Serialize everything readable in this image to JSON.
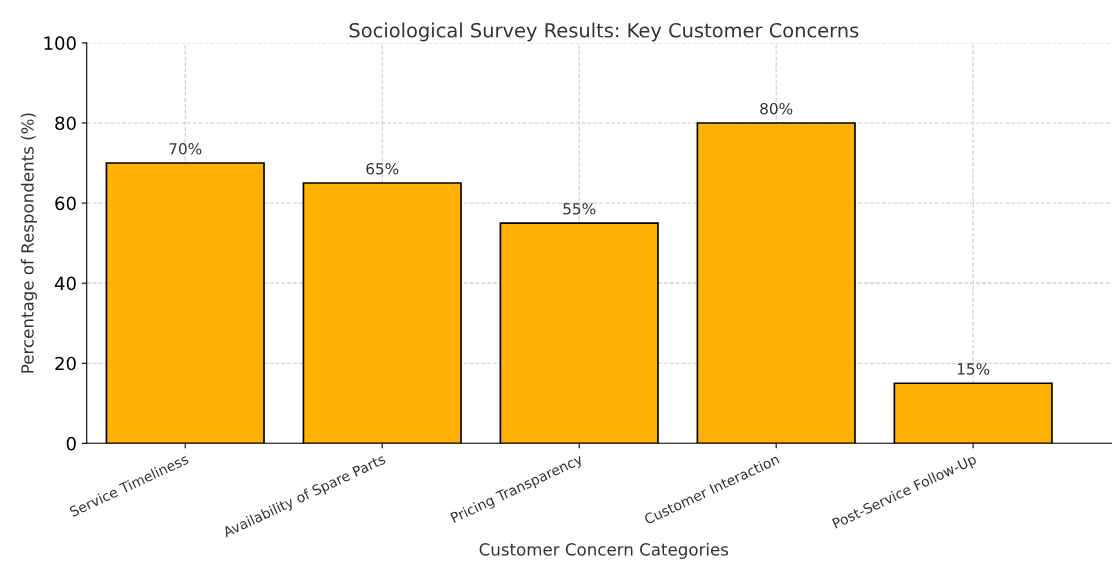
{
  "chart_data": {
    "type": "bar",
    "title": "Sociological Survey Results: Key Customer Concerns",
    "xlabel": "Customer Concern Categories",
    "ylabel": "Percentage of Respondents (%)",
    "categories": [
      "Service Timeliness",
      "Availability of Spare Parts",
      "Pricing Transparency",
      "Customer Interaction",
      "Post-Service Follow-Up"
    ],
    "values": [
      70,
      65,
      55,
      80,
      15
    ],
    "value_labels": [
      "70%",
      "65%",
      "55%",
      "80%",
      "15%"
    ],
    "color": "#ffb000",
    "ylim": [
      0,
      100
    ],
    "yticks": [
      0,
      20,
      40,
      60,
      80,
      100
    ],
    "grid": true,
    "legend": false
  }
}
